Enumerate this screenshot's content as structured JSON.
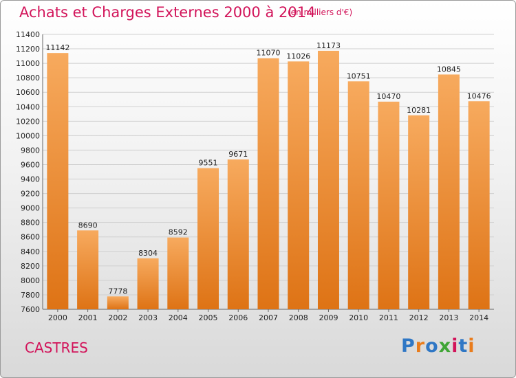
{
  "header": {
    "title": "Achats et Charges Externes 2000 à 2014",
    "subtitle": "(en milliers d'€)"
  },
  "footer": {
    "city": "CASTRES",
    "logo": "Proxiti"
  },
  "colors": {
    "title": "#d2145a",
    "bar_light": "#f7aa5e",
    "bar_dark": "#de7315",
    "logo_letters": [
      "#2f77c5",
      "#e97c1c",
      "#2f77c5",
      "#3fa535",
      "#d2145a",
      "#2f77c5",
      "#e97c1c"
    ]
  },
  "chart_data": {
    "type": "bar",
    "title": "Achats et Charges Externes 2000 à 2014",
    "subtitle": "(en milliers d'€)",
    "categories": [
      "2000",
      "2001",
      "2002",
      "2003",
      "2004",
      "2005",
      "2006",
      "2007",
      "2008",
      "2009",
      "2010",
      "2011",
      "2012",
      "2013",
      "2014"
    ],
    "values": [
      11142,
      8690,
      7778,
      8304,
      8592,
      9551,
      9671,
      11070,
      11026,
      11173,
      10751,
      10470,
      10281,
      10845,
      10476
    ],
    "ylim": [
      7600,
      11400
    ],
    "yticks": [
      7600,
      7800,
      8000,
      8200,
      8400,
      8600,
      8800,
      9000,
      9200,
      9400,
      9600,
      9800,
      10000,
      10200,
      10400,
      10600,
      10800,
      11000,
      11200,
      11400
    ],
    "grid": true,
    "legend": "none"
  }
}
